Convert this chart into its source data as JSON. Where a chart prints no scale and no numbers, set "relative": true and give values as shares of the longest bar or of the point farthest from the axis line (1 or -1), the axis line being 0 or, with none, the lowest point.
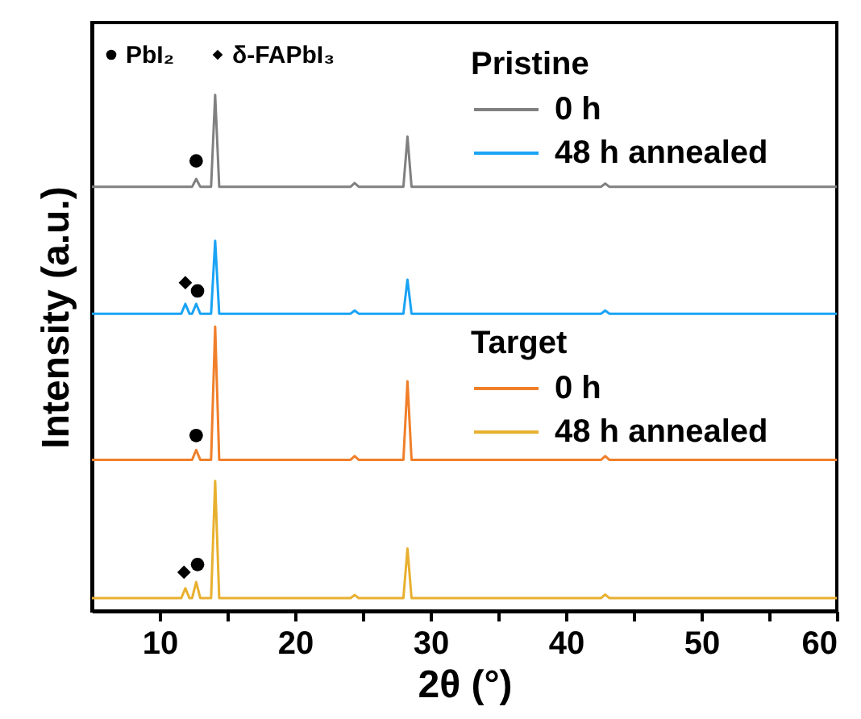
{
  "chart_data": {
    "type": "line",
    "xlabel": "2θ (°)",
    "ylabel": "Intensity (a.u.)",
    "relative": true,
    "xlim": [
      5,
      60
    ],
    "xticks": [
      10,
      {
        "value": 15,
        "label": null
      },
      20,
      {
        "value": 25,
        "label": null
      },
      30,
      {
        "value": 35,
        "label": null
      },
      40,
      {
        "value": 45,
        "label": null
      },
      50,
      {
        "value": 55,
        "label": null
      },
      60
    ],
    "legend": "top",
    "grid": false,
    "tick_labels": "x",
    "annotations": [
      "Pristine",
      "Target"
    ],
    "series": [
      {
        "name": "0 h",
        "color": "#808080",
        "x": [
          5,
          12.4,
          12.7,
          13.0,
          13.8,
          14.1,
          14.4,
          24.1,
          24.4,
          24.7,
          28.0,
          28.3,
          28.6,
          42.6,
          42.9,
          43.2,
          60
        ],
        "values": [
          0.822,
          0.822,
          0.837,
          0.822,
          0.822,
          1.0,
          0.822,
          0.822,
          0.829,
          0.822,
          0.822,
          0.919,
          0.822,
          0.822,
          0.828,
          0.822,
          0.822
        ]
      },
      {
        "name": "48 h annealed",
        "color": "#1aa3f5",
        "x": [
          5,
          11.6,
          11.9,
          12.2,
          12.4,
          12.7,
          13.0,
          13.8,
          14.1,
          14.4,
          24.1,
          24.4,
          24.7,
          28.0,
          28.3,
          28.6,
          42.6,
          42.9,
          43.2,
          60
        ],
        "values": [
          0.576,
          0.576,
          0.595,
          0.576,
          0.576,
          0.595,
          0.576,
          0.576,
          0.717,
          0.576,
          0.576,
          0.582,
          0.576,
          0.576,
          0.642,
          0.576,
          0.576,
          0.582,
          0.576,
          0.576
        ]
      },
      {
        "name": "0 h",
        "color": "#f07f2a",
        "x": [
          5,
          12.4,
          12.7,
          13.0,
          13.8,
          14.1,
          14.4,
          24.1,
          24.4,
          24.7,
          28.0,
          28.3,
          28.6,
          42.6,
          42.9,
          43.2,
          60
        ],
        "values": [
          0.293,
          0.293,
          0.312,
          0.293,
          0.293,
          0.551,
          0.293,
          0.293,
          0.3,
          0.293,
          0.293,
          0.445,
          0.293,
          0.293,
          0.3,
          0.293,
          0.293
        ]
      },
      {
        "name": "48 h annealed",
        "color": "#e8b030",
        "x": [
          5,
          11.6,
          11.9,
          12.2,
          12.4,
          12.7,
          13.0,
          13.8,
          14.1,
          14.4,
          24.1,
          24.4,
          24.7,
          28.0,
          28.3,
          28.6,
          42.6,
          42.9,
          43.2,
          60
        ],
        "values": [
          0.025,
          0.025,
          0.044,
          0.025,
          0.025,
          0.056,
          0.025,
          0.025,
          0.252,
          0.025,
          0.025,
          0.031,
          0.025,
          0.025,
          0.121,
          0.025,
          0.025,
          0.032,
          0.025,
          0.025
        ]
      },
      {
        "name": "PbI₂",
        "type": "scatter",
        "marker": "circle",
        "color": "#000000",
        "x": [
          12.7,
          12.8,
          12.7,
          12.8
        ],
        "values": [
          0.872,
          0.62,
          0.34,
          0.09
        ]
      },
      {
        "name": "δ-FAPbI₃",
        "type": "scatter",
        "marker": "diamond",
        "color": "#000000",
        "x": [
          11.9,
          11.8
        ],
        "values": [
          0.636,
          0.075
        ]
      }
    ]
  }
}
